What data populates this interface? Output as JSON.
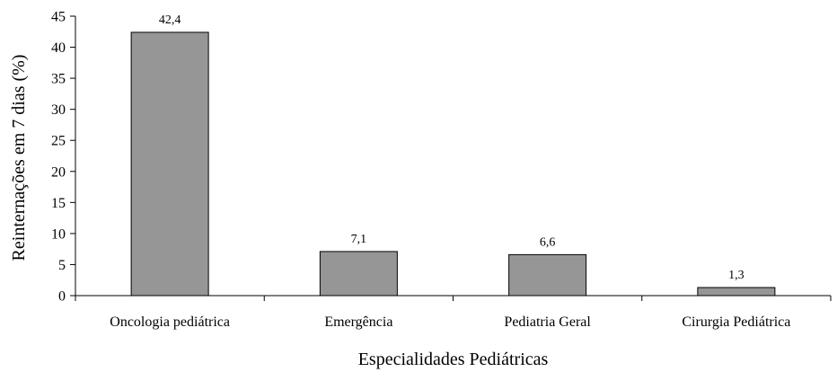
{
  "chart_data": {
    "type": "bar",
    "categories": [
      "Oncologia pediátrica",
      "Emergência",
      "Pediatria Geral",
      "Cirurgia Pediátrica"
    ],
    "values": [
      42.4,
      7.1,
      6.6,
      1.3
    ],
    "data_labels": [
      "42,4",
      "7,1",
      "6,6",
      "1,3"
    ],
    "title": "",
    "xlabel": "Especialidades Pediátricas",
    "ylabel": "Reinternações em 7 dias (%)",
    "ylim": [
      0,
      45
    ],
    "yticks": [
      0,
      5,
      10,
      15,
      20,
      25,
      30,
      35,
      40,
      45
    ],
    "ytick_labels": [
      "0",
      "5",
      "10",
      "15",
      "20",
      "25",
      "30",
      "35",
      "40",
      "45"
    ],
    "grid": false,
    "legend": "none",
    "colors": {
      "bar_fill": "#969696",
      "bar_stroke": "#000000",
      "axis": "#000000",
      "background": "#ffffff"
    }
  }
}
